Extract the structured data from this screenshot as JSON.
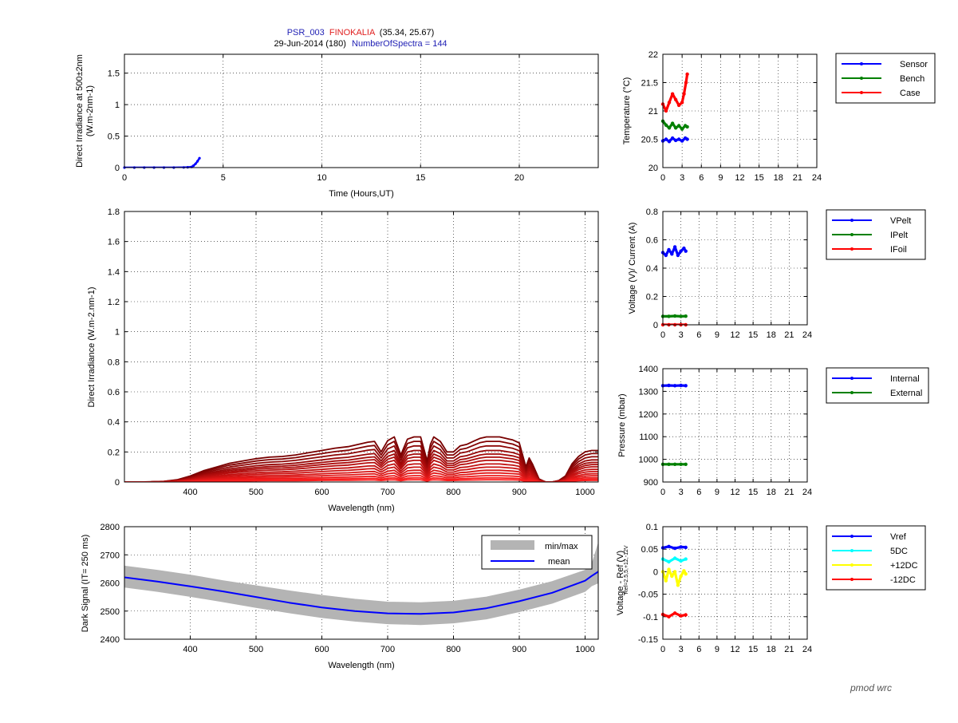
{
  "header": {
    "instrument": "PSR_003",
    "station": "FINOKALIA",
    "coords": "(35.34, 25.67)",
    "date_line": "29-Jun-2014 (180)",
    "spectra_label": "NumberOfSpectra = 144"
  },
  "logo": {
    "text": "pmod wrc"
  },
  "colors": {
    "blue": "#0000ff",
    "green": "#008000",
    "red": "#ff0000",
    "cyan": "#00ffff",
    "yellow": "#ffff00",
    "gray": "#b4b4b4",
    "header_blue": "#1f1fb4",
    "header_red": "#e02020"
  },
  "chart_data": [
    {
      "id": "timeseries",
      "type": "line",
      "title": "",
      "xlabel": "Time (Hours,UT)",
      "ylabel_line1": "Direct Irradiance at 500±2nm",
      "ylabel_line2": "(W.m-2nm-1)",
      "xlim": [
        0,
        24
      ],
      "ylim": [
        0,
        1.8
      ],
      "xticks": [
        0,
        5,
        10,
        15,
        20
      ],
      "yticks": [
        0,
        0.5,
        1,
        1.5
      ],
      "tick_labels_x": [
        "0",
        "5",
        "10",
        "15",
        "20"
      ],
      "tick_labels_y": [
        "0",
        "0.5",
        "1",
        "1.5"
      ],
      "series": [
        {
          "name": "Direct Irradiance 500nm",
          "color": "blue",
          "x": [
            0,
            0.5,
            1,
            1.5,
            2,
            2.5,
            3,
            3.2,
            3.4,
            3.5,
            3.6,
            3.7,
            3.8
          ],
          "y": [
            0,
            0,
            0,
            0,
            0,
            0,
            0.002,
            0.005,
            0.01,
            0.03,
            0.06,
            0.1,
            0.15
          ]
        }
      ]
    },
    {
      "id": "spectra",
      "type": "line",
      "xlabel": "Wavelength (nm)",
      "ylabel": "Direct Irradiance (W.m-2.nm-1)",
      "xlim": [
        300,
        1020
      ],
      "ylim": [
        0,
        1.8
      ],
      "xticks": [
        400,
        500,
        600,
        700,
        800,
        900,
        1000
      ],
      "yticks": [
        0,
        0.2,
        0.4,
        0.6,
        0.8,
        1,
        1.2,
        1.4,
        1.6,
        1.8
      ],
      "tick_labels_x": [
        "400",
        "500",
        "600",
        "700",
        "800",
        "900",
        "1000"
      ],
      "tick_labels_y": [
        "0",
        "0.2",
        "0.4",
        "0.6",
        "0.8",
        "1",
        "1.2",
        "1.4",
        "1.6",
        "1.8"
      ],
      "wavelengths": [
        300,
        320,
        340,
        360,
        380,
        400,
        420,
        440,
        460,
        480,
        500,
        520,
        540,
        560,
        580,
        600,
        620,
        640,
        660,
        670,
        680,
        690,
        700,
        710,
        720,
        730,
        740,
        750,
        760,
        765,
        770,
        780,
        790,
        800,
        810,
        820,
        830,
        840,
        850,
        860,
        870,
        880,
        890,
        900,
        910,
        915,
        920,
        930,
        940,
        950,
        960,
        970,
        980,
        990,
        1000,
        1010,
        1020
      ],
      "base_shape": [
        0,
        0,
        0.001,
        0.004,
        0.015,
        0.04,
        0.075,
        0.1,
        0.125,
        0.14,
        0.155,
        0.165,
        0.17,
        0.18,
        0.195,
        0.21,
        0.225,
        0.235,
        0.255,
        0.265,
        0.27,
        0.2,
        0.275,
        0.3,
        0.18,
        0.285,
        0.3,
        0.3,
        0.14,
        0.25,
        0.3,
        0.27,
        0.2,
        0.2,
        0.24,
        0.25,
        0.27,
        0.29,
        0.3,
        0.3,
        0.3,
        0.29,
        0.28,
        0.26,
        0.1,
        0.16,
        0.12,
        0.02,
        0,
        0,
        0.01,
        0.04,
        0.12,
        0.17,
        0.2,
        0.21,
        0.21
      ],
      "scale_factors": [
        1.0,
        0.9,
        0.8,
        0.7,
        0.62,
        0.55,
        0.48,
        0.4,
        0.33,
        0.26,
        0.2,
        0.14,
        0.09,
        0.05
      ]
    },
    {
      "id": "dark",
      "type": "line",
      "xlabel": "Wavelength (nm)",
      "ylabel": "Dark Signal (IT= 250 ms)",
      "xlim": [
        300,
        1020
      ],
      "ylim": [
        2400,
        2800
      ],
      "xticks": [
        400,
        500,
        600,
        700,
        800,
        900,
        1000
      ],
      "yticks": [
        2400,
        2500,
        2600,
        2700,
        2800
      ],
      "tick_labels_x": [
        "400",
        "500",
        "600",
        "700",
        "800",
        "900",
        "1000"
      ],
      "tick_labels_y": [
        "2400",
        "2500",
        "2600",
        "2700",
        "2800"
      ],
      "legend": [
        "min/max",
        "mean"
      ],
      "series": [
        {
          "name": "mean",
          "x": [
            300,
            350,
            400,
            450,
            500,
            550,
            600,
            650,
            700,
            750,
            800,
            850,
            900,
            950,
            1000,
            1010,
            1020
          ],
          "y": [
            2620,
            2605,
            2588,
            2570,
            2550,
            2530,
            2513,
            2500,
            2492,
            2490,
            2495,
            2510,
            2535,
            2565,
            2608,
            2625,
            2640
          ]
        },
        {
          "name": "max",
          "x": [
            300,
            350,
            400,
            450,
            500,
            550,
            600,
            650,
            700,
            750,
            800,
            850,
            900,
            950,
            1000,
            1010,
            1020
          ],
          "y": [
            2660,
            2645,
            2628,
            2608,
            2590,
            2572,
            2556,
            2542,
            2532,
            2530,
            2535,
            2550,
            2575,
            2605,
            2645,
            2665,
            2740
          ]
        },
        {
          "name": "min",
          "x": [
            300,
            350,
            400,
            450,
            500,
            550,
            600,
            650,
            700,
            750,
            800,
            850,
            900,
            950,
            1000,
            1010,
            1020
          ],
          "y": [
            2585,
            2570,
            2552,
            2533,
            2513,
            2494,
            2477,
            2464,
            2455,
            2452,
            2458,
            2472,
            2498,
            2528,
            2570,
            2590,
            2600
          ]
        }
      ]
    },
    {
      "id": "temperature",
      "type": "line",
      "ylabel": "Temperature (°C)",
      "xlim": [
        0,
        24
      ],
      "ylim": [
        20,
        22
      ],
      "xticks": [
        0,
        3,
        6,
        9,
        12,
        15,
        18,
        21,
        24
      ],
      "yticks": [
        20,
        20.5,
        21,
        21.5,
        22
      ],
      "tick_labels_x": [
        "0",
        "3",
        "6",
        "9",
        "12",
        "15",
        "18",
        "21",
        "24"
      ],
      "tick_labels_y": [
        "20",
        "20.5",
        "21",
        "21.5",
        "22"
      ],
      "legend": [
        "Sensor",
        "Bench",
        "Case"
      ],
      "series": [
        {
          "name": "Sensor",
          "color": "blue",
          "x": [
            0,
            0.5,
            1,
            1.5,
            2,
            2.5,
            3,
            3.5,
            3.8
          ],
          "y": [
            20.47,
            20.5,
            20.46,
            20.52,
            20.48,
            20.5,
            20.47,
            20.52,
            20.5
          ]
        },
        {
          "name": "Bench",
          "color": "green",
          "x": [
            0,
            0.5,
            1,
            1.5,
            2,
            2.5,
            3,
            3.5,
            3.8
          ],
          "y": [
            20.82,
            20.75,
            20.7,
            20.78,
            20.7,
            20.74,
            20.68,
            20.74,
            20.72
          ]
        },
        {
          "name": "Case",
          "color": "red",
          "x": [
            0,
            0.5,
            1,
            1.5,
            2,
            2.5,
            3,
            3.3,
            3.6,
            3.8
          ],
          "y": [
            21.12,
            21.0,
            21.15,
            21.3,
            21.2,
            21.1,
            21.15,
            21.3,
            21.5,
            21.65
          ]
        }
      ]
    },
    {
      "id": "electrical",
      "type": "line",
      "ylabel": "Voltage (V)/ Current (A)",
      "xlim": [
        0,
        24
      ],
      "ylim": [
        0,
        0.8
      ],
      "xticks": [
        0,
        3,
        6,
        9,
        12,
        15,
        18,
        21,
        24
      ],
      "yticks": [
        0,
        0.2,
        0.4,
        0.6,
        0.8
      ],
      "tick_labels_x": [
        "0",
        "3",
        "6",
        "9",
        "12",
        "15",
        "18",
        "21",
        "24"
      ],
      "tick_labels_y": [
        "0",
        "0.2",
        "0.4",
        "0.6",
        "0.8"
      ],
      "legend": [
        "VPelt",
        "IPelt",
        "IFoil"
      ],
      "series": [
        {
          "name": "VPelt",
          "color": "blue",
          "x": [
            0,
            0.5,
            1,
            1.5,
            2,
            2.5,
            3,
            3.5,
            3.8
          ],
          "y": [
            0.51,
            0.49,
            0.53,
            0.5,
            0.55,
            0.49,
            0.52,
            0.54,
            0.52
          ]
        },
        {
          "name": "IPelt",
          "color": "green",
          "x": [
            0,
            1,
            2,
            3,
            3.8
          ],
          "y": [
            0.06,
            0.06,
            0.062,
            0.06,
            0.061
          ]
        },
        {
          "name": "IFoil",
          "color": "red",
          "x": [
            0,
            1,
            2,
            3,
            3.8
          ],
          "y": [
            0,
            0,
            0,
            0,
            0
          ]
        }
      ]
    },
    {
      "id": "pressure",
      "type": "line",
      "ylabel": "Pressure (mbar)",
      "xlim": [
        0,
        24
      ],
      "ylim": [
        900,
        1400
      ],
      "xticks": [
        0,
        3,
        6,
        9,
        12,
        15,
        18,
        21,
        24
      ],
      "yticks": [
        900,
        1000,
        1100,
        1200,
        1300,
        1400
      ],
      "tick_labels_x": [
        "0",
        "3",
        "6",
        "9",
        "12",
        "15",
        "18",
        "21",
        "24"
      ],
      "tick_labels_y": [
        "900",
        "1000",
        "1100",
        "1200",
        "1300",
        "1400"
      ],
      "legend": [
        "Internal",
        "External"
      ],
      "series": [
        {
          "name": "Internal",
          "color": "blue",
          "x": [
            0,
            1,
            2,
            3,
            3.8
          ],
          "y": [
            1325,
            1326,
            1325,
            1326,
            1325
          ]
        },
        {
          "name": "External",
          "color": "green",
          "x": [
            0,
            1,
            2,
            3,
            3.8
          ],
          "y": [
            978,
            978,
            978,
            978,
            978
          ]
        }
      ]
    },
    {
      "id": "voltages",
      "type": "line",
      "ylabel": "Voltage - Ref (V)",
      "ylabel_sub": "Ref=2.5,5,+12,-12V",
      "xlim": [
        0,
        24
      ],
      "ylim": [
        -0.15,
        0.1
      ],
      "xticks": [
        0,
        3,
        6,
        9,
        12,
        15,
        18,
        21,
        24
      ],
      "yticks": [
        -0.15,
        -0.1,
        -0.05,
        0,
        0.05,
        0.1
      ],
      "tick_labels_x": [
        "0",
        "3",
        "6",
        "9",
        "12",
        "15",
        "18",
        "21",
        "24"
      ],
      "tick_labels_y": [
        "-0.15",
        "-0.1",
        "-0.05",
        "0",
        "0.05",
        "0.1"
      ],
      "legend": [
        "Vref",
        "5DC",
        "+12DC",
        "-12DC"
      ],
      "series": [
        {
          "name": "Vref",
          "color": "blue",
          "x": [
            0,
            1,
            2,
            3,
            3.8
          ],
          "y": [
            0.053,
            0.056,
            0.052,
            0.055,
            0.054
          ]
        },
        {
          "name": "5DC",
          "color": "cyan",
          "x": [
            0,
            1,
            2,
            3,
            3.8
          ],
          "y": [
            0.028,
            0.022,
            0.03,
            0.024,
            0.028
          ]
        },
        {
          "name": "+12DC",
          "color": "yellow",
          "x": [
            0,
            0.5,
            1,
            1.5,
            2,
            2.5,
            3,
            3.5,
            3.8
          ],
          "y": [
            0.0,
            -0.02,
            0.005,
            -0.01,
            0.0,
            -0.03,
            -0.01,
            0.002,
            -0.005
          ]
        },
        {
          "name": "-12DC",
          "color": "red",
          "x": [
            0,
            1,
            2,
            3,
            3.8
          ],
          "y": [
            -0.095,
            -0.1,
            -0.092,
            -0.098,
            -0.096
          ]
        }
      ]
    }
  ]
}
